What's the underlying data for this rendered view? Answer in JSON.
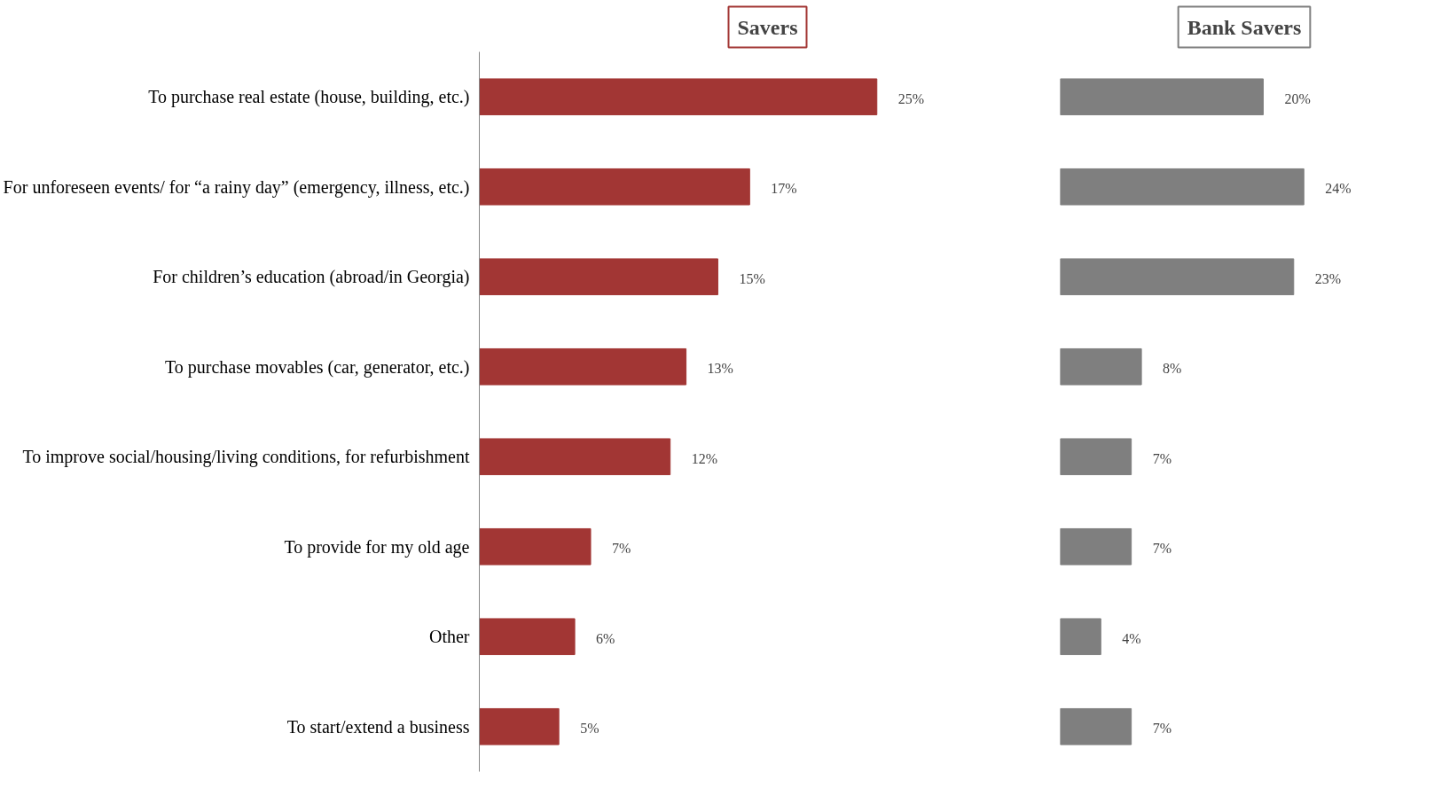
{
  "chart_data": [
    {
      "type": "bar",
      "orientation": "horizontal",
      "title": "Savers",
      "categories": [
        "To purchase real estate (house, building, etc.)",
        "For unforeseen events/ for “a rainy day” (emergency, illness, etc.)",
        "For children’s education (abroad/in Georgia)",
        "To purchase movables (car, generator, etc.)",
        "To improve social/housing/living conditions, for refurbishment",
        "To provide for my old age",
        "Other",
        "To start/extend a business"
      ],
      "values": [
        25,
        17,
        15,
        13,
        12,
        7,
        6,
        5
      ],
      "value_labels": [
        "25%",
        "17%",
        "15%",
        "13%",
        "12%",
        "7%",
        "6%",
        "5%"
      ],
      "color": "#a23634",
      "tick_labels": "y"
    },
    {
      "type": "bar",
      "orientation": "horizontal",
      "title": "Bank Savers",
      "categories": [
        null,
        null,
        null,
        null,
        null,
        null,
        null,
        null
      ],
      "values": [
        20,
        24,
        23,
        8,
        7,
        7,
        4,
        7
      ],
      "value_labels": [
        "20%",
        "24%",
        "23%",
        "8%",
        "7%",
        "7%",
        "4%",
        "7%"
      ],
      "color": "#7f7f7f",
      "tick_labels": false
    }
  ]
}
